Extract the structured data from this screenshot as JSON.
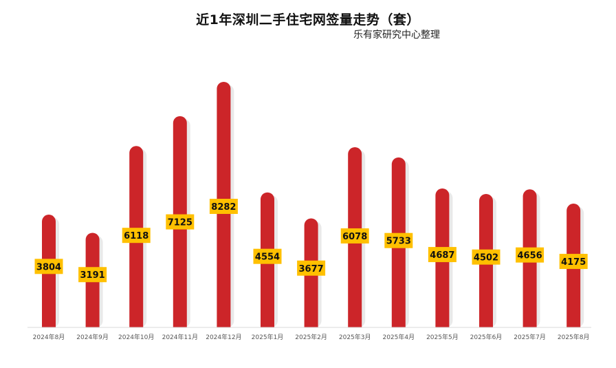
{
  "chart_data": {
    "type": "bar",
    "title": "近1年深圳二手住宅网签量走势（套）",
    "subtitle": "乐有家研究中心整理",
    "categories": [
      "2024年8月",
      "2024年9月",
      "2024年10月",
      "2024年11月",
      "2024年12月",
      "2025年1月",
      "2025年2月",
      "2025年3月",
      "2025年4月",
      "2025年5月",
      "2025年6月",
      "2025年7月",
      "2025年8月"
    ],
    "values": [
      3804,
      3191,
      6118,
      7125,
      8282,
      4554,
      3677,
      6078,
      5733,
      4687,
      4502,
      4656,
      4175
    ],
    "xlabel": "",
    "ylabel": "",
    "ylim": [
      0,
      8282
    ],
    "grid": false,
    "legend": "none",
    "data_labels": true,
    "colors": {
      "bar": "#cc2529",
      "label_box": "#ffc000",
      "label_text": "#111111",
      "axis": "#d9d9d9"
    }
  }
}
